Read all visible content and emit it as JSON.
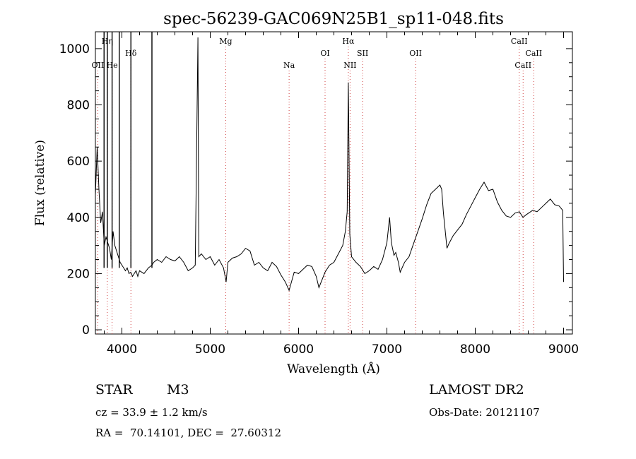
{
  "chart_data": {
    "type": "line",
    "title": "spec-56239-GAC069N25B1_sp11-048.fits",
    "xlabel": "Wavelength (Å)",
    "ylabel": "Flux (relative)",
    "xlim": [
      3700,
      9100
    ],
    "ylim": [
      -15,
      1060
    ],
    "x_ticks": [
      4000,
      5000,
      6000,
      7000,
      8000,
      9000
    ],
    "y_ticks": [
      0,
      200,
      400,
      600,
      800,
      1000
    ],
    "grid": false,
    "series": [
      {
        "x": [
          3700,
          3720,
          3740,
          3760,
          3780,
          3800,
          3820,
          3840,
          3860,
          3880,
          3900,
          3920,
          3940,
          3960,
          3980,
          4000,
          4020,
          4040,
          4060,
          4080,
          4100,
          4120,
          4140,
          4160,
          4180,
          4200,
          4250,
          4300,
          4340,
          4360,
          4400,
          4450,
          4500,
          4550,
          4600,
          4650,
          4700,
          4750,
          4800,
          4830,
          4861,
          4870,
          4900,
          4950,
          5000,
          5050,
          5100,
          5150,
          5180,
          5200,
          5250,
          5300,
          5350,
          5400,
          5450,
          5500,
          5550,
          5600,
          5650,
          5700,
          5750,
          5800,
          5850,
          5893,
          5950,
          6000,
          6050,
          6100,
          6150,
          6200,
          6230,
          6300,
          6350,
          6400,
          6450,
          6500,
          6530,
          6550,
          6563,
          6580,
          6600,
          6650,
          6700,
          6750,
          6800,
          6850,
          6900,
          6950,
          7000,
          7030,
          7050,
          7080,
          7100,
          7130,
          7150,
          7200,
          7250,
          7300,
          7350,
          7400,
          7450,
          7500,
          7550,
          7600,
          7620,
          7640,
          7680,
          7700,
          7750,
          7800,
          7850,
          7900,
          7950,
          8000,
          8050,
          8100,
          8150,
          8200,
          8250,
          8300,
          8350,
          8400,
          8450,
          8500,
          8540,
          8580,
          8650,
          8700,
          8750,
          8800,
          8850,
          8900,
          8950,
          8990,
          9000
        ],
        "y": [
          480,
          650,
          500,
          380,
          420,
          300,
          330,
          310,
          290,
          250,
          350,
          300,
          280,
          260,
          240,
          230,
          220,
          210,
          220,
          200,
          205,
          190,
          200,
          210,
          190,
          210,
          200,
          220,
          230,
          240,
          250,
          240,
          260,
          250,
          245,
          260,
          240,
          210,
          220,
          230,
          1040,
          260,
          270,
          250,
          260,
          230,
          250,
          220,
          170,
          240,
          255,
          260,
          270,
          290,
          280,
          230,
          240,
          220,
          210,
          240,
          225,
          195,
          170,
          140,
          205,
          200,
          215,
          230,
          225,
          190,
          150,
          205,
          230,
          240,
          270,
          300,
          350,
          420,
          880,
          340,
          260,
          240,
          225,
          200,
          210,
          225,
          215,
          250,
          310,
          400,
          310,
          265,
          275,
          240,
          205,
          240,
          260,
          305,
          350,
          395,
          445,
          485,
          500,
          515,
          500,
          415,
          290,
          305,
          335,
          355,
          375,
          410,
          440,
          470,
          500,
          525,
          495,
          500,
          455,
          425,
          405,
          400,
          415,
          420,
          400,
          410,
          425,
          420,
          435,
          450,
          465,
          445,
          440,
          425,
          170
        ]
      }
    ],
    "spectral_lines": [
      {
        "label": "OII",
        "x": 3727,
        "row": 3
      },
      {
        "label": "Hη",
        "x": 3835,
        "row": 1
      },
      {
        "label": "He",
        "x": 3889,
        "row": 3
      },
      {
        "label": "Hδ",
        "x": 4102,
        "row": 2
      },
      {
        "label": "Mg",
        "x": 5175,
        "row": 1
      },
      {
        "label": "Na",
        "x": 5893,
        "row": 3
      },
      {
        "label": "OI",
        "x": 6300,
        "row": 2
      },
      {
        "label": "Hα",
        "x": 6563,
        "row": 1
      },
      {
        "label": "NII",
        "x": 6583,
        "row": 3
      },
      {
        "label": "SII",
        "x": 6725,
        "row": 2
      },
      {
        "label": "OII",
        "x": 7325,
        "row": 2
      },
      {
        "label": "CaII",
        "x": 8498,
        "row": 1
      },
      {
        "label": "CaII",
        "x": 8542,
        "row": 3
      },
      {
        "label": "CaII",
        "x": 8662,
        "row": 2
      }
    ],
    "balmer_spikes": [
      {
        "x": 3798,
        "peak": 1060
      },
      {
        "x": 3835,
        "peak": 1060
      },
      {
        "x": 3889,
        "peak": 1060
      },
      {
        "x": 3970,
        "peak": 1060
      },
      {
        "x": 4102,
        "peak": 1060
      },
      {
        "x": 4340,
        "peak": 1060
      }
    ]
  },
  "info": {
    "object_class": "STAR",
    "subclass": "M3",
    "survey": "LAMOST DR2",
    "cz": "cz = 33.9 ± 1.2 km/s",
    "obs_date": "Obs-Date: 20121107",
    "coords": "RA =  70.14101, DEC =  27.60312"
  }
}
